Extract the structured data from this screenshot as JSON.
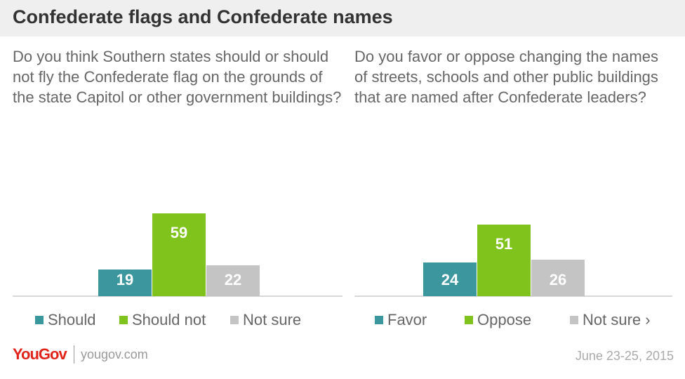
{
  "header": {
    "title": "Confederate flags and Confederate names"
  },
  "colors": {
    "teal": "#3b979d",
    "green": "#7fc31c",
    "gray": "#c4c4c4",
    "baseline": "#cccccc"
  },
  "chart_data": [
    {
      "type": "bar",
      "title": "Do you think Southern states should or should not fly the Confederate flag on the grounds of the state Capitol or other government buildings?",
      "categories": [
        "Should",
        "Should not",
        "Not sure"
      ],
      "values": [
        19,
        59,
        22
      ],
      "colors": [
        "#3b979d",
        "#7fc31c",
        "#c4c4c4"
      ],
      "legend": [
        "Should",
        "Should not",
        "Not sure"
      ],
      "ylim": [
        0,
        59
      ]
    },
    {
      "type": "bar",
      "title": "Do you favor or oppose changing the names of streets, schools and other public buildings that are named after Confederate leaders?",
      "categories": [
        "Favor",
        "Oppose",
        "Not sure"
      ],
      "values": [
        24,
        51,
        26
      ],
      "colors": [
        "#3b979d",
        "#7fc31c",
        "#c4c4c4"
      ],
      "legend": [
        "Favor",
        "Oppose",
        "Not sure ›"
      ],
      "ylim": [
        0,
        59
      ]
    }
  ],
  "footer": {
    "logo": "YouGov",
    "website": "yougov.com",
    "date": "June 23-25, 2015"
  }
}
